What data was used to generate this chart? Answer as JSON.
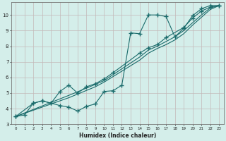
{
  "xlabel": "Humidex (Indice chaleur)",
  "xlim": [
    -0.5,
    23.5
  ],
  "ylim": [
    3,
    10.8
  ],
  "bg_color": "#d4eeea",
  "plot_bg_color": "#d4eeea",
  "line_color": "#1a6b6b",
  "grid_color": "#c4b8b8",
  "line1_x": [
    0,
    1,
    2,
    3,
    4,
    5,
    6,
    7,
    8,
    9,
    10,
    11,
    12,
    13,
    14,
    15,
    16,
    17,
    18,
    19,
    20,
    21,
    22,
    23
  ],
  "line1_y": [
    3.5,
    3.6,
    4.35,
    4.5,
    4.35,
    4.2,
    4.1,
    3.85,
    4.15,
    4.3,
    5.1,
    5.15,
    5.5,
    8.85,
    8.8,
    10.0,
    10.0,
    9.9,
    8.6,
    9.15,
    9.95,
    10.4,
    10.6,
    10.6
  ],
  "line2_x": [
    0,
    2,
    3,
    4,
    5,
    6,
    7,
    8,
    9,
    10,
    11,
    14,
    15,
    16,
    17,
    19,
    20,
    21,
    22,
    23
  ],
  "line2_y": [
    3.5,
    4.35,
    4.5,
    4.35,
    5.1,
    5.5,
    5.0,
    5.4,
    5.6,
    5.9,
    6.3,
    7.55,
    7.9,
    8.1,
    8.55,
    9.2,
    9.8,
    10.25,
    10.5,
    10.6
  ],
  "line3_x": [
    0,
    6,
    9,
    10,
    14,
    15,
    16,
    17,
    18,
    19,
    20,
    21,
    22,
    23
  ],
  "line3_y": [
    3.5,
    4.85,
    5.55,
    5.8,
    7.3,
    7.75,
    8.0,
    8.3,
    8.6,
    9.0,
    9.5,
    10.0,
    10.45,
    10.6
  ],
  "line4_x": [
    0,
    6,
    9,
    10,
    14,
    15,
    16,
    17,
    18,
    19,
    20,
    21,
    22,
    23
  ],
  "line4_y": [
    3.5,
    4.7,
    5.4,
    5.7,
    7.1,
    7.55,
    7.85,
    8.1,
    8.4,
    8.8,
    9.35,
    9.85,
    10.35,
    10.6
  ]
}
